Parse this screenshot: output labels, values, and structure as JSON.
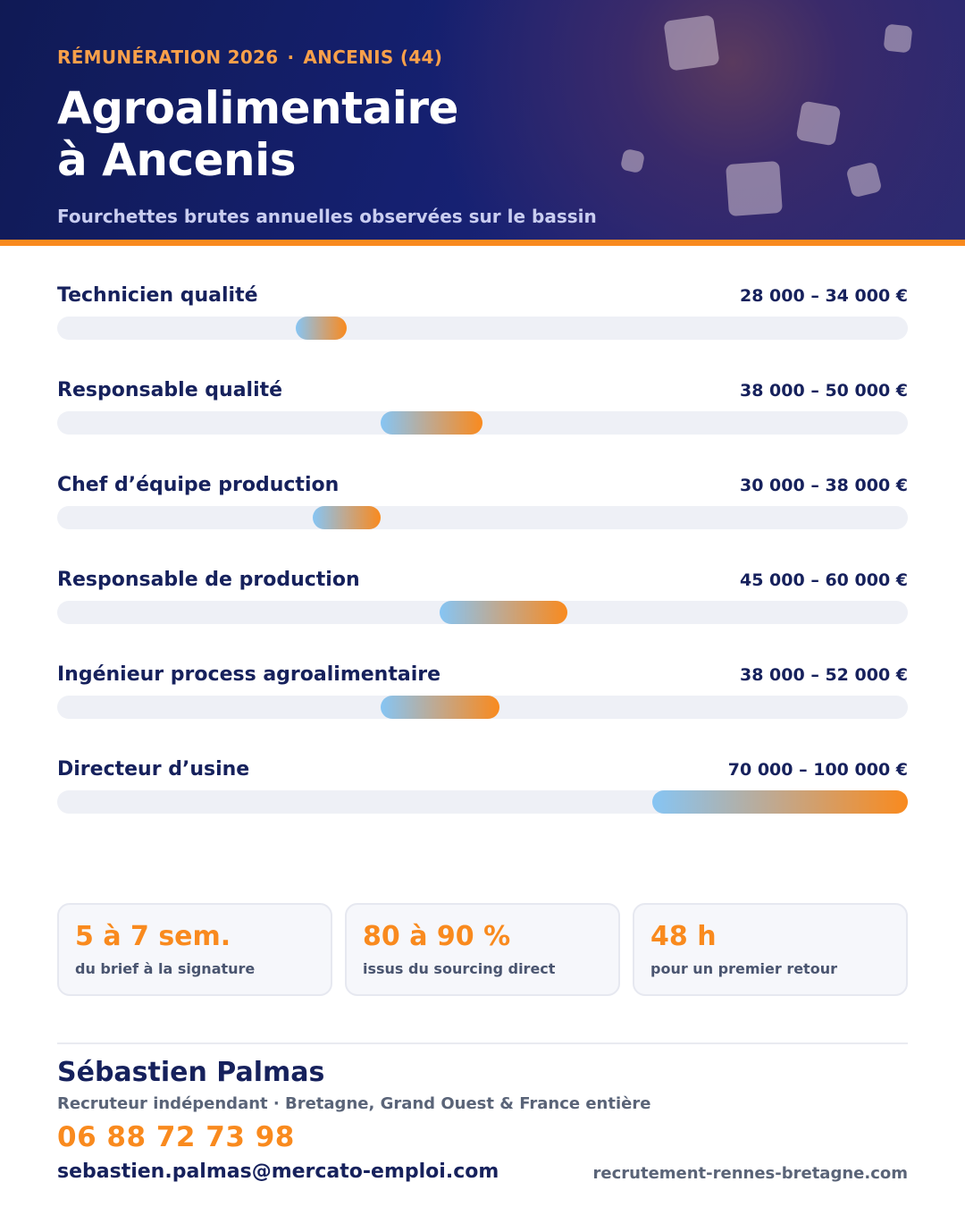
{
  "header": {
    "kicker_left": "RÉMUNÉRATION 2026",
    "kicker_separator": "·",
    "kicker_right": "ANCENIS (44)",
    "title_line1": "Agroalimentaire",
    "title_line2": "à Ancenis",
    "subtitle": "Fourchettes brutes annuelles observées sur le bassin"
  },
  "colors": {
    "navy": "#16215c",
    "accent_orange": "#f98a1e",
    "bar_start_blue": "#86c5f4",
    "track": "#eef0f6"
  },
  "chart_data": {
    "type": "bar",
    "orientation": "horizontal-range",
    "scale_min": 0,
    "scale_max": 100000,
    "unit": "€",
    "rows": [
      {
        "label": "Technicien qualité",
        "range_label": "28 000 – 34 000 €",
        "low": 28000,
        "high": 34000
      },
      {
        "label": "Responsable qualité",
        "range_label": "38 000 – 50 000 €",
        "low": 38000,
        "high": 50000
      },
      {
        "label": "Chef d’équipe production",
        "range_label": "30 000 – 38 000 €",
        "low": 30000,
        "high": 38000
      },
      {
        "label": "Responsable de production",
        "range_label": "45 000 – 60 000 €",
        "low": 45000,
        "high": 60000
      },
      {
        "label": "Ingénieur process agroalimentaire",
        "range_label": "38 000 – 52 000 €",
        "low": 38000,
        "high": 52000
      },
      {
        "label": "Directeur d’usine",
        "range_label": "70 000 – 100 000 €",
        "low": 70000,
        "high": 100000
      }
    ]
  },
  "stats": [
    {
      "value": "5 à 7 sem.",
      "caption": "du brief à la signature"
    },
    {
      "value": "80 à 90 %",
      "caption": "issus du sourcing direct"
    },
    {
      "value": "48 h",
      "caption": "pour un premier retour"
    }
  ],
  "contact": {
    "name": "Sébastien Palmas",
    "role": "Recruteur indépendant · Bretagne, Grand Ouest & France entière",
    "phone": "06 88 72 73 98",
    "email": "sebastien.palmas@mercato-emploi.com",
    "website": "recrutement-rennes-bretagne.com"
  }
}
